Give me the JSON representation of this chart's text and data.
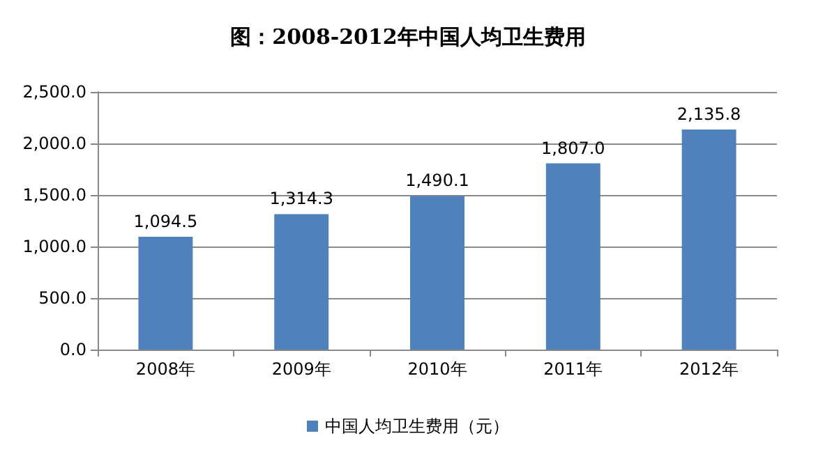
{
  "chart_data": {
    "type": "bar",
    "title": "图：2008-2012年中国人均卫生费用",
    "categories": [
      "2008年",
      "2009年",
      "2010年",
      "2011年",
      "2012年"
    ],
    "series": [
      {
        "name": "中国人均卫生费用（元）",
        "color": "#4f81bd",
        "values": [
          1094.5,
          1314.3,
          1490.1,
          1807.0,
          2135.8
        ],
        "value_labels": [
          "1,094.5",
          "1,314.3",
          "1,490.1",
          "1,807.0",
          "2,135.8"
        ]
      }
    ],
    "ylim": [
      0,
      2500
    ],
    "yticks": [
      {
        "value": 0,
        "label": "0.0"
      },
      {
        "value": 500,
        "label": "500.0"
      },
      {
        "value": 1000,
        "label": "1,000.0"
      },
      {
        "value": 1500,
        "label": "1,500.0"
      },
      {
        "value": 2000,
        "label": "2,000.0"
      },
      {
        "value": 2500,
        "label": "2,500.0"
      }
    ],
    "grid": "y",
    "legend": "bottom"
  }
}
